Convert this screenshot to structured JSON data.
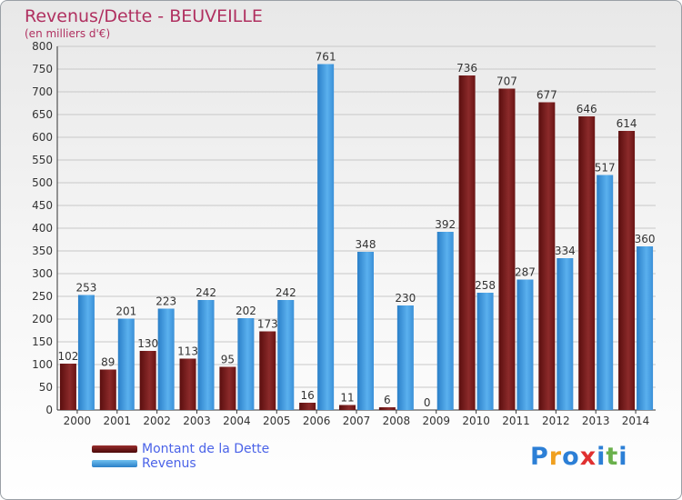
{
  "chart_data": {
    "type": "bar",
    "title": "Revenus/Dette - BEUVEILLE",
    "subtitle": "(en milliers d'€)",
    "categories": [
      "2000",
      "2001",
      "2002",
      "2003",
      "2004",
      "2005",
      "2006",
      "2007",
      "2008",
      "2009",
      "2010",
      "2011",
      "2012",
      "2013",
      "2014"
    ],
    "series": [
      {
        "name": "Montant de la Dette",
        "color": "#7a1a1a",
        "values": [
          102,
          89,
          130,
          113,
          95,
          173,
          16,
          11,
          6,
          0,
          736,
          707,
          677,
          646,
          614
        ]
      },
      {
        "name": "Revenus",
        "color": "#3b9ae0",
        "values": [
          253,
          201,
          223,
          242,
          202,
          242,
          761,
          348,
          230,
          392,
          258,
          287,
          334,
          517,
          360
        ]
      }
    ],
    "ylim": [
      0,
      800
    ],
    "yticks": [
      0,
      50,
      100,
      150,
      200,
      250,
      300,
      350,
      400,
      450,
      500,
      550,
      600,
      650,
      700,
      750,
      800
    ],
    "grid": true,
    "legend_position": "bottom-left"
  },
  "brand": {
    "letters": [
      "P",
      "r",
      "o",
      "x",
      "i",
      "t",
      "i"
    ],
    "colors": [
      "#2c7fd6",
      "#f0a020",
      "#2c7fd6",
      "#e03030",
      "#2c7fd6",
      "#6ab04c",
      "#2c7fd6"
    ]
  }
}
